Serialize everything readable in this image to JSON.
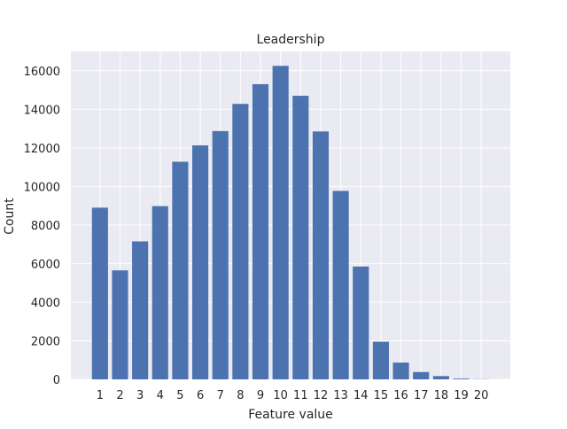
{
  "chart_data": {
    "type": "bar",
    "title": "Leadership",
    "xlabel": "Feature value",
    "ylabel": "Count",
    "categories": [
      "1",
      "2",
      "3",
      "4",
      "5",
      "6",
      "7",
      "8",
      "9",
      "10",
      "11",
      "12",
      "13",
      "14",
      "15",
      "16",
      "17",
      "18",
      "19",
      "20"
    ],
    "values": [
      8900,
      5650,
      7150,
      8980,
      11280,
      12130,
      12870,
      14280,
      15300,
      16250,
      14700,
      12850,
      9770,
      5850,
      1950,
      870,
      380,
      170,
      40,
      10
    ],
    "ylim": [
      0,
      17000
    ],
    "yticks": [
      0,
      2000,
      4000,
      6000,
      8000,
      10000,
      12000,
      14000,
      16000
    ],
    "grid": true,
    "colors": {
      "bar": "#4c72b0",
      "plot_background": "#eaeaf2",
      "grid": "#ffffff"
    }
  }
}
